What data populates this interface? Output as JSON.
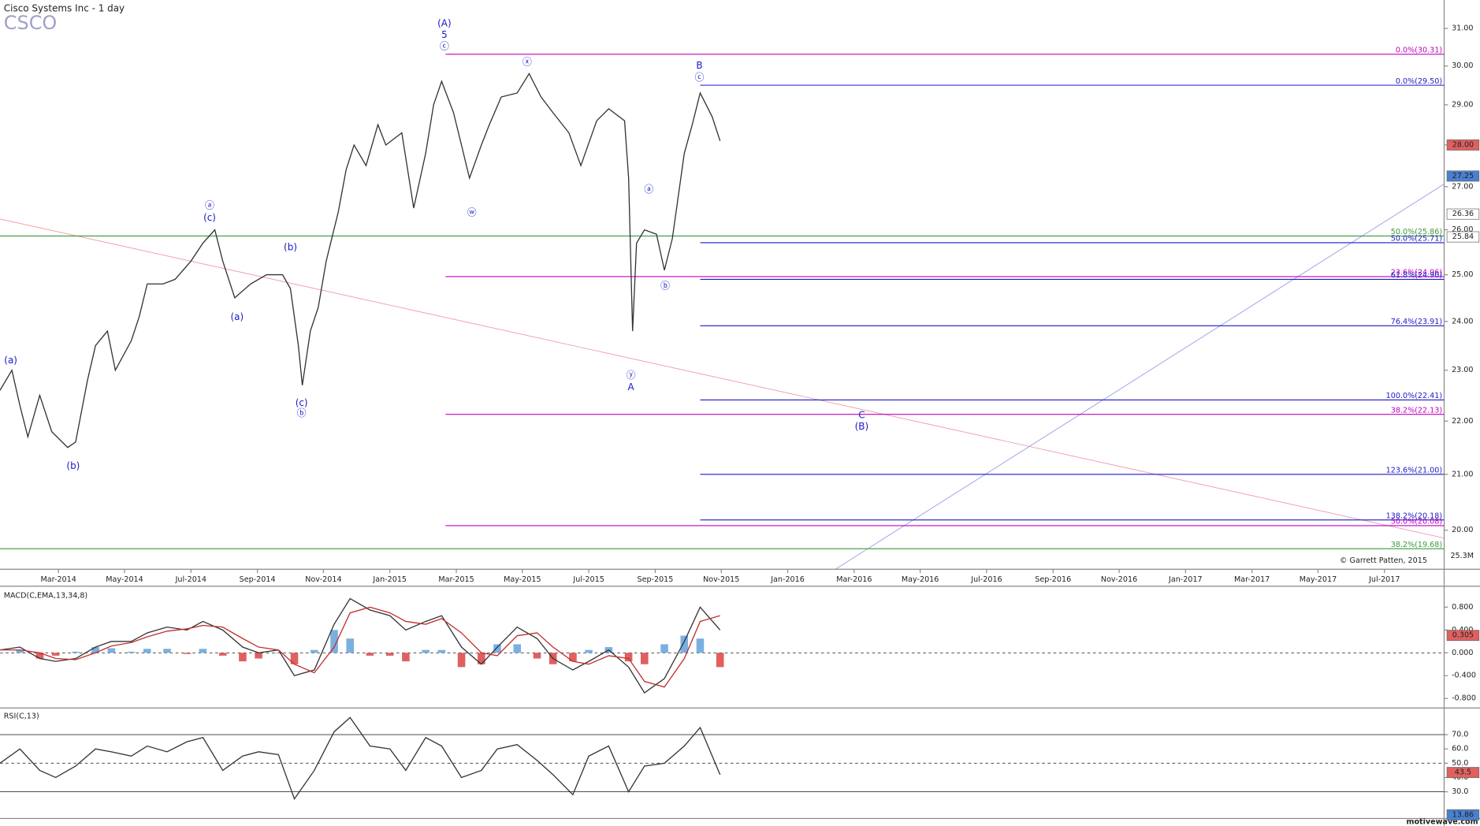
{
  "chart_data": [
    {
      "type": "line",
      "title": "Cisco Systems Inc - 1 day",
      "symbol": "CSCO",
      "credit": "© Garrett Patten, 2015",
      "footer": "motivewave.com",
      "volume_label": "25.3M",
      "log_scale": true,
      "xlim": [
        2014.02,
        2017.65
      ],
      "ylim": [
        19.33,
        31.78
      ],
      "xticks": [
        {
          "value": 2014.167,
          "label": "Mar-2014"
        },
        {
          "value": 2014.333,
          "label": "May-2014"
        },
        {
          "value": 2014.5,
          "label": "Jul-2014"
        },
        {
          "value": 2014.667,
          "label": "Sep-2014"
        },
        {
          "value": 2014.833,
          "label": "Nov-2014"
        },
        {
          "value": 2015.0,
          "label": "Jan-2015"
        },
        {
          "value": 2015.167,
          "label": "Mar-2015"
        },
        {
          "value": 2015.333,
          "label": "May-2015"
        },
        {
          "value": 2015.5,
          "label": "Jul-2015"
        },
        {
          "value": 2015.667,
          "label": "Sep-2015"
        },
        {
          "value": 2015.833,
          "label": "Nov-2015"
        },
        {
          "value": 2016.0,
          "label": "Jan-2016"
        },
        {
          "value": 2016.167,
          "label": "Mar-2016"
        },
        {
          "value": 2016.333,
          "label": "May-2016"
        },
        {
          "value": 2016.5,
          "label": "Jul-2016"
        },
        {
          "value": 2016.667,
          "label": "Sep-2016"
        },
        {
          "value": 2016.833,
          "label": "Nov-2016"
        },
        {
          "value": 2017.0,
          "label": "Jan-2017"
        },
        {
          "value": 2017.167,
          "label": "Mar-2017"
        },
        {
          "value": 2017.333,
          "label": "May-2017"
        },
        {
          "value": 2017.5,
          "label": "Jul-2017"
        }
      ],
      "yticks": [
        {
          "value": 20,
          "label": "20.00"
        },
        {
          "value": 21,
          "label": "21.00"
        },
        {
          "value": 22,
          "label": "22.00"
        },
        {
          "value": 23,
          "label": "23.00"
        },
        {
          "value": 24,
          "label": "24.00"
        },
        {
          "value": 25,
          "label": "25.00"
        },
        {
          "value": 26,
          "label": "26.00"
        },
        {
          "value": 27,
          "label": "27.00"
        },
        {
          "value": 28,
          "label": "28.00"
        },
        {
          "value": 29,
          "label": "29.00"
        },
        {
          "value": 30,
          "label": "30.00"
        },
        {
          "value": 31,
          "label": "31.00"
        }
      ],
      "x": [
        2014.02,
        2014.05,
        2014.07,
        2014.09,
        2014.12,
        2014.15,
        2014.19,
        2014.21,
        2014.24,
        2014.26,
        2014.29,
        2014.31,
        2014.35,
        2014.37,
        2014.39,
        2014.43,
        2014.46,
        2014.5,
        2014.53,
        2014.56,
        2014.58,
        2014.61,
        2014.65,
        2014.69,
        2014.73,
        2014.75,
        2014.77,
        2014.78,
        2014.8,
        2014.82,
        2014.84,
        2014.87,
        2014.89,
        2014.91,
        2014.94,
        2014.97,
        2014.99,
        2015.03,
        2015.06,
        2015.09,
        2015.11,
        2015.13,
        2015.16,
        2015.18,
        2015.2,
        2015.23,
        2015.25,
        2015.28,
        2015.32,
        2015.35,
        2015.38,
        2015.41,
        2015.45,
        2015.48,
        2015.52,
        2015.55,
        2015.59,
        2015.6,
        2015.61,
        2015.62,
        2015.64,
        2015.67,
        2015.69,
        2015.71,
        2015.74,
        2015.76,
        2015.78,
        2015.81,
        2015.83
      ],
      "series": [
        {
          "color": "#333333",
          "values": [
            22.6,
            23.0,
            22.3,
            21.7,
            22.5,
            21.8,
            21.5,
            21.6,
            22.8,
            23.5,
            23.8,
            23.0,
            23.6,
            24.1,
            24.8,
            24.8,
            24.9,
            25.3,
            25.7,
            26.0,
            25.3,
            24.5,
            24.8,
            25.0,
            25.0,
            24.7,
            23.5,
            22.7,
            23.8,
            24.3,
            25.3,
            26.4,
            27.4,
            28.0,
            27.5,
            28.5,
            28.0,
            28.3,
            26.5,
            27.8,
            29.0,
            29.6,
            28.8,
            28.0,
            27.2,
            28.0,
            28.5,
            29.2,
            29.3,
            29.8,
            29.2,
            28.8,
            28.3,
            27.5,
            28.6,
            28.9,
            28.6,
            27.2,
            23.8,
            25.7,
            26.0,
            25.9,
            25.1,
            25.8,
            27.8,
            28.5,
            29.3,
            28.7,
            28.1
          ]
        }
      ],
      "levels": [
        {
          "value": 30.31,
          "label": "0.0%(30.31)",
          "color": "#c000c0",
          "start": 2015.14
        },
        {
          "value": 29.5,
          "label": "0.0%(29.50)",
          "color": "#1a1ac8",
          "start": 2015.78
        },
        {
          "value": 25.86,
          "label": "50.0%(25.86)",
          "color": "#3a9a3a",
          "start": 2014.02
        },
        {
          "value": 25.71,
          "label": "50.0%(25.71)",
          "color": "#1a1ac8",
          "start": 2015.78
        },
        {
          "value": 24.96,
          "label": "23.6%(24.96)",
          "color": "#c000c0",
          "start": 2015.14
        },
        {
          "value": 24.9,
          "label": "61.8%(24.90)",
          "color": "#1a1ac8",
          "start": 2015.78
        },
        {
          "value": 23.91,
          "label": "76.4%(23.91)",
          "color": "#1a1ac8",
          "start": 2015.78
        },
        {
          "value": 22.41,
          "label": "100.0%(22.41)",
          "color": "#1a1ac8",
          "start": 2015.78
        },
        {
          "value": 22.13,
          "label": "38.2%(22.13)",
          "color": "#c000c0",
          "start": 2015.14
        },
        {
          "value": 21.0,
          "label": "123.6%(21.00)",
          "color": "#1a1ac8",
          "start": 2015.78
        },
        {
          "value": 20.18,
          "label": "138.2%(20.18)",
          "color": "#1a1ac8",
          "start": 2015.78
        },
        {
          "value": 20.08,
          "label": "50.0%(20.08)",
          "color": "#c000c0",
          "start": 2015.14
        },
        {
          "value": 19.68,
          "label": "38.2%(19.68)",
          "color": "#3a9a3a",
          "start": 2014.02
        }
      ],
      "annotations": [
        {
          "text": "(a)",
          "x": 2014.047,
          "y": 23.19
        },
        {
          "text": "(b)",
          "x": 2014.204,
          "y": 21.15
        },
        {
          "text": "ⓐ",
          "x": 2014.547,
          "y": 26.55
        },
        {
          "text": "(c)",
          "x": 2014.547,
          "y": 26.27
        },
        {
          "text": "(a)",
          "x": 2014.616,
          "y": 24.09
        },
        {
          "text": "(b)",
          "x": 2014.75,
          "y": 25.6
        },
        {
          "text": "(c)",
          "x": 2014.778,
          "y": 22.35
        },
        {
          "text": "ⓑ",
          "x": 2014.778,
          "y": 22.15
        },
        {
          "text": "(A)",
          "x": 2015.137,
          "y": 31.13
        },
        {
          "text": "5",
          "x": 2015.137,
          "y": 30.82
        },
        {
          "text": "ⓒ",
          "x": 2015.137,
          "y": 30.52
        },
        {
          "text": "ⓦ",
          "x": 2015.206,
          "y": 26.39
        },
        {
          "text": "ⓧ",
          "x": 2015.345,
          "y": 30.1
        },
        {
          "text": "ⓐ",
          "x": 2015.651,
          "y": 26.93
        },
        {
          "text": "ⓑ",
          "x": 2015.692,
          "y": 24.75
        },
        {
          "text": "ⓨ",
          "x": 2015.606,
          "y": 22.89
        },
        {
          "text": "A",
          "x": 2015.606,
          "y": 22.66
        },
        {
          "text": "B",
          "x": 2015.778,
          "y": 30.0
        },
        {
          "text": "ⓒ",
          "x": 2015.778,
          "y": 29.7
        },
        {
          "text": "C",
          "x": 2016.186,
          "y": 22.11
        },
        {
          "text": "(B)",
          "x": 2016.186,
          "y": 21.89
        }
      ],
      "markers": [
        {
          "value": 28.0,
          "label": "28.00",
          "color": "#e06060"
        },
        {
          "value": 27.25,
          "label": "27.25",
          "color": "#4a80d0"
        },
        {
          "value": 26.36,
          "label": "26.36",
          "color": "#ffffff"
        },
        {
          "value": 25.84,
          "label": "25.84",
          "color": "#ffffff"
        }
      ]
    },
    {
      "type": "line",
      "title": "MACD(C,EMA,13,34,8)",
      "ylim": [
        -0.95,
        1.15
      ],
      "yticks": [
        {
          "value": 0.8,
          "label": "0.800"
        },
        {
          "value": 0.4,
          "label": "0.400"
        },
        {
          "value": 0,
          "label": "0.000"
        },
        {
          "value": -0.4,
          "label": "-0.400"
        },
        {
          "value": -0.8,
          "label": "-0.800"
        }
      ],
      "guides": [
        {
          "value": 0,
          "dashed": true
        }
      ],
      "x": [
        2014.02,
        2014.07,
        2014.12,
        2014.16,
        2014.21,
        2014.26,
        2014.3,
        2014.35,
        2014.39,
        2014.44,
        2014.49,
        2014.53,
        2014.58,
        2014.63,
        2014.67,
        2014.72,
        2014.76,
        2014.81,
        2014.86,
        2014.9,
        2014.95,
        2015.0,
        2015.04,
        2015.09,
        2015.13,
        2015.18,
        2015.23,
        2015.27,
        2015.32,
        2015.37,
        2015.41,
        2015.46,
        2015.5,
        2015.55,
        2015.6,
        2015.64,
        2015.69,
        2015.74,
        2015.78,
        2015.83
      ],
      "series": [
        {
          "type": "bar",
          "color_up": "#7ab0e0",
          "color_down": "#e06060",
          "values": [
            0,
            0.05,
            -0.1,
            -0.05,
            0.02,
            0.1,
            0.08,
            0.02,
            0.07,
            0.07,
            -0.02,
            0.07,
            -0.05,
            -0.15,
            -0.1,
            0,
            -0.2,
            0.05,
            0.4,
            0.25,
            -0.05,
            -0.05,
            -0.15,
            0.05,
            0.05,
            -0.25,
            -0.2,
            0.15,
            0.15,
            -0.1,
            -0.2,
            -0.15,
            0.05,
            0.1,
            -0.15,
            -0.2,
            0.15,
            0.3,
            0.25,
            -0.25
          ]
        },
        {
          "color": "#333333",
          "values": [
            0.05,
            0.1,
            -0.1,
            -0.15,
            -0.1,
            0.1,
            0.2,
            0.2,
            0.35,
            0.45,
            0.4,
            0.55,
            0.4,
            0.1,
            0.0,
            0.05,
            -0.4,
            -0.3,
            0.5,
            0.95,
            0.75,
            0.65,
            0.4,
            0.55,
            0.65,
            0.1,
            -0.2,
            0.1,
            0.45,
            0.25,
            -0.1,
            -0.3,
            -0.15,
            0.05,
            -0.25,
            -0.7,
            -0.45,
            0.2,
            0.8,
            0.4
          ]
        },
        {
          "color": "#c03030",
          "values": [
            0.05,
            0.05,
            0.0,
            -0.1,
            -0.12,
            0.0,
            0.12,
            0.18,
            0.28,
            0.38,
            0.42,
            0.48,
            0.45,
            0.25,
            0.1,
            0.05,
            -0.2,
            -0.35,
            0.1,
            0.7,
            0.8,
            0.7,
            0.55,
            0.5,
            0.6,
            0.35,
            0.0,
            -0.05,
            0.3,
            0.35,
            0.1,
            -0.15,
            -0.2,
            -0.05,
            -0.1,
            -0.5,
            -0.6,
            -0.1,
            0.55,
            0.65
          ]
        }
      ],
      "markers": [
        {
          "value": 0.305,
          "label": "0.305",
          "color": "#e06060"
        }
      ]
    },
    {
      "type": "line",
      "title": "RSI(C,13)",
      "ylim": [
        12,
        88
      ],
      "yticks": [
        {
          "value": 70,
          "label": "70.0"
        },
        {
          "value": 60,
          "label": "60.0"
        },
        {
          "value": 50,
          "label": "50.0"
        },
        {
          "value": 40,
          "label": "40.0"
        },
        {
          "value": 30,
          "label": "30.0"
        }
      ],
      "guides": [
        {
          "value": 70
        },
        {
          "value": 50,
          "dashed": true
        },
        {
          "value": 30
        }
      ],
      "x": [
        2014.02,
        2014.07,
        2014.12,
        2014.16,
        2014.21,
        2014.26,
        2014.3,
        2014.35,
        2014.39,
        2014.44,
        2014.49,
        2014.53,
        2014.58,
        2014.63,
        2014.67,
        2014.72,
        2014.76,
        2014.81,
        2014.86,
        2014.9,
        2014.95,
        2015.0,
        2015.04,
        2015.09,
        2015.13,
        2015.18,
        2015.23,
        2015.27,
        2015.32,
        2015.37,
        2015.41,
        2015.46,
        2015.5,
        2015.55,
        2015.6,
        2015.64,
        2015.69,
        2015.74,
        2015.78,
        2015.83
      ],
      "series": [
        {
          "color": "#333333",
          "values": [
            50,
            60,
            45,
            40,
            48,
            60,
            58,
            55,
            62,
            58,
            65,
            68,
            45,
            55,
            58,
            56,
            25,
            45,
            72,
            82,
            62,
            60,
            45,
            68,
            62,
            40,
            45,
            60,
            63,
            52,
            42,
            28,
            55,
            62,
            30,
            48,
            50,
            62,
            75,
            42
          ]
        }
      ],
      "markers": [
        {
          "value": 43.5,
          "label": "43.5",
          "color": "#e06060"
        },
        {
          "value": 13.86,
          "label": "13.86",
          "color": "#4a80d0"
        }
      ]
    }
  ]
}
